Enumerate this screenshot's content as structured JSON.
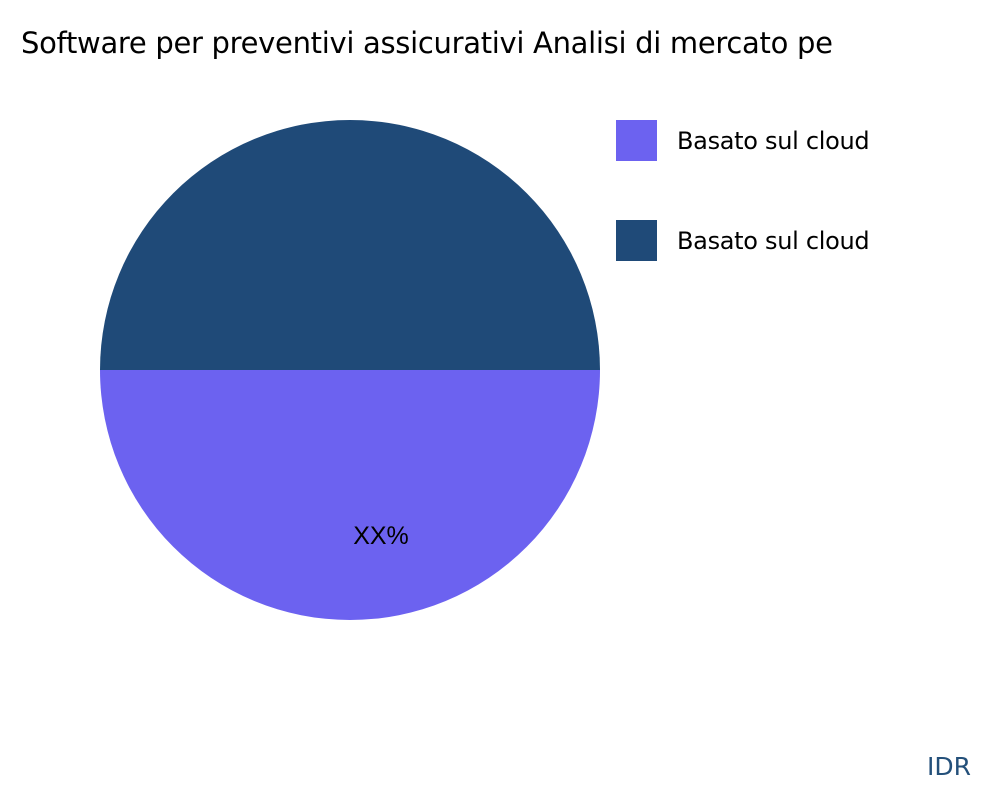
{
  "chart_data": {
    "type": "pie",
    "title": "Software per preventivi assicurativi Analisi di mercato pe",
    "slices": [
      {
        "name": "Basato sul cloud",
        "value": 50,
        "label": "XX%",
        "color": "#6c62f0"
      },
      {
        "name": "Basato sul cloud",
        "value": 50,
        "label": "XX%",
        "color": "#1f4a78"
      }
    ],
    "legend_position": "right"
  },
  "watermark": "IDR"
}
